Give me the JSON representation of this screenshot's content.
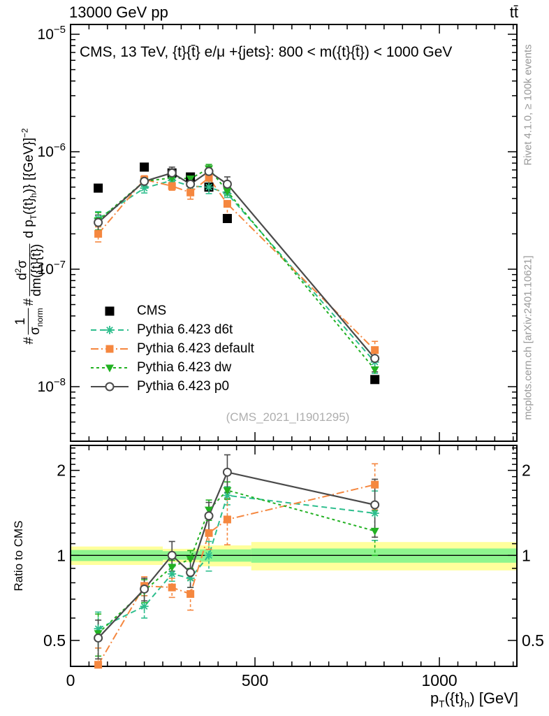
{
  "header": {
    "left": "13000 GeV pp",
    "right": "tt̄"
  },
  "annotations": {
    "watermark": "(CMS_2021_I1901295)",
    "rivet": "Rivet 4.1.0, ≥ 100k events",
    "mcplots": "mcplots.cern.ch [arXiv:2401.10621]"
  },
  "labels": {
    "ratio_ylabel": "Ratio to CMS",
    "x_title": {
      "base1": "p",
      "sub1": "T",
      "base2": "({t}",
      "sub2": "h",
      "base3": ") [GeV]"
    },
    "y_title": {
      "hash": "#",
      "frac1_num": "1",
      "frac1_den_base": "σ",
      "frac1_den_sub": "norm",
      "hash2": "#",
      "frac2_num_pre": "d",
      "frac2_num_sup": "2",
      "frac2_num_post": "σ",
      "frac2_den": "dm({t}{t̄})",
      "tail1": " d p",
      "tail1_sub": "T",
      "tail2": "({t}",
      "tail2_sub": "h",
      "tail3": ")} [{GeV}]",
      "tail_sup": "−2"
    }
  },
  "chart_data": {
    "type": "line",
    "title": "CMS, 13 TeV, {t}{t̄} e/μ +{jets}: 800 < m({t}{t̄}) < 1000 GeV",
    "xlabel": "p_T({t}_h) [GeV]",
    "ylabel": "# 1/σ_norm # d²σ/dm({t}{t̄}) d p_T({t}_h)} [{GeV}]⁻²",
    "ratio_ylabel": "Ratio to CMS",
    "x": [
      75,
      200,
      275,
      325,
      375,
      425,
      825
    ],
    "xlim": [
      0,
      1210
    ],
    "x_major_ticks": [
      0,
      500,
      1000
    ],
    "x_minor_step": 50,
    "main_axis": {
      "log": true,
      "ylim": [
        3.4e-09,
        1.21e-05
      ],
      "ytick_exponents": [
        -5,
        -6,
        -7,
        -8
      ]
    },
    "ratio_axis": {
      "log": true,
      "ylim": [
        0.405,
        2.45
      ],
      "ticks": [
        0.5,
        1,
        2
      ],
      "minor_step": 0.1
    },
    "series": [
      {
        "name": "CMS",
        "marker": "square",
        "color": "#000000",
        "line": "none",
        "values": [
          4.9e-07,
          7.4e-07,
          6.6e-07,
          6.1e-07,
          5e-07,
          2.7e-07,
          1.15e-08
        ]
      },
      {
        "name": "Pythia 6.423 d6t",
        "marker": "star",
        "color": "#2dbe8d",
        "line": "dash",
        "values": [
          2.7e-07,
          4.9e-07,
          5.7e-07,
          5.1e-07,
          5e-07,
          4.4e-07,
          1.62e-08
        ],
        "ratio": [
          0.55,
          0.66,
          0.86,
          0.83,
          1.0,
          1.63,
          1.41
        ],
        "ratio_err": [
          0.08,
          0.06,
          0.05,
          0.06,
          0.12,
          0.12,
          0.28
        ]
      },
      {
        "name": "Pythia 6.423 default",
        "marker": "fsquare",
        "color": "#f5873f",
        "line": "dashdot",
        "values": [
          2e-07,
          5.8e-07,
          5.1e-07,
          4.5e-07,
          6e-07,
          3.6e-07,
          2.05e-08
        ],
        "ratio": [
          0.41,
          0.78,
          0.77,
          0.73,
          1.2,
          1.34,
          1.78
        ],
        "ratio_err": [
          0.06,
          0.06,
          0.06,
          0.09,
          0.15,
          0.25,
          0.33
        ]
      },
      {
        "name": "Pythia 6.423 dw",
        "marker": "triangle",
        "color": "#22b122",
        "line": "dash2",
        "values": [
          2.6e-07,
          5.6e-07,
          6e-07,
          5.9e-07,
          7.2e-07,
          4.6e-07,
          1.4e-08
        ],
        "ratio": [
          0.53,
          0.75,
          0.91,
          0.97,
          1.45,
          1.7,
          1.22
        ],
        "ratio_err": [
          0.09,
          0.07,
          0.05,
          0.07,
          0.12,
          0.12,
          0.22
        ]
      },
      {
        "name": "Pythia 6.423 p0",
        "marker": "circle",
        "color": "#4a4a4a",
        "line": "solid",
        "values": [
          2.5e-07,
          5.6e-07,
          6.6e-07,
          5.3e-07,
          6.8e-07,
          5.3e-07,
          1.74e-08
        ],
        "ratio": [
          0.51,
          0.76,
          1.0,
          0.87,
          1.38,
          1.97,
          1.51
        ],
        "ratio_err": [
          0.08,
          0.07,
          0.12,
          0.1,
          0.16,
          0.3,
          0.35
        ]
      }
    ],
    "ratio_bands": {
      "yellow_color": "#ffff9c",
      "green_color": "#8ef58e",
      "segments": [
        {
          "x0": 0,
          "x1": 250,
          "yellow": 0.075,
          "green": 0.045
        },
        {
          "x0": 250,
          "x1": 350,
          "yellow": 0.055,
          "green": 0.035
        },
        {
          "x0": 350,
          "x1": 490,
          "yellow": 0.085,
          "green": 0.05
        },
        {
          "x0": 490,
          "x1": 1210,
          "yellow": 0.115,
          "green": 0.058
        }
      ]
    },
    "legend_position": "center-left"
  }
}
